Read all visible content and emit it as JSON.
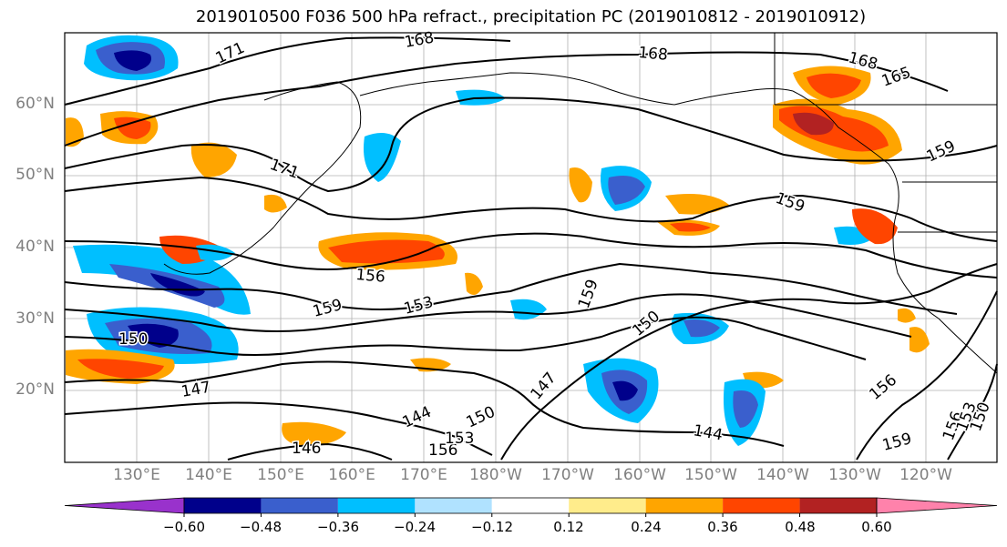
{
  "title": "2019010500 F036 500 hPa refract., precipitation PC (2019010812 - 2019010912)",
  "lat_labels": [
    "60°N",
    "50°N",
    "40°N",
    "30°N",
    "20°N"
  ],
  "lon_labels": [
    "130°E",
    "140°E",
    "150°E",
    "160°E",
    "170°E",
    "180°W",
    "170°W",
    "160°W",
    "150°W",
    "140°W",
    "130°W",
    "120°W"
  ],
  "colorbar": {
    "ticks": [
      "−0.60",
      "−0.48",
      "−0.36",
      "−0.24",
      "−0.12",
      "0.12",
      "0.24",
      "0.36",
      "0.48",
      "0.60"
    ],
    "colors": [
      "#9932CC",
      "#00008B",
      "#3A5FCD",
      "#00BFFF",
      "#B0E2FF",
      "#FFFFFF",
      "#FFEC8B",
      "#FFA500",
      "#FF4500",
      "#B22222",
      "#FF82AB"
    ]
  },
  "contour_labels": [
    "171",
    "168",
    "168",
    "168",
    "165",
    "171",
    "159",
    "159",
    "156",
    "159",
    "153",
    "150",
    "150",
    "147",
    "147",
    "144",
    "150",
    "156",
    "153",
    "144",
    "156",
    "159",
    "156",
    "153",
    "150",
    "146",
    "159"
  ],
  "colors": {
    "ocean": "#ffffff",
    "grid": "#b0b0b0",
    "contour": "#000000",
    "tick_label": "#808080"
  }
}
